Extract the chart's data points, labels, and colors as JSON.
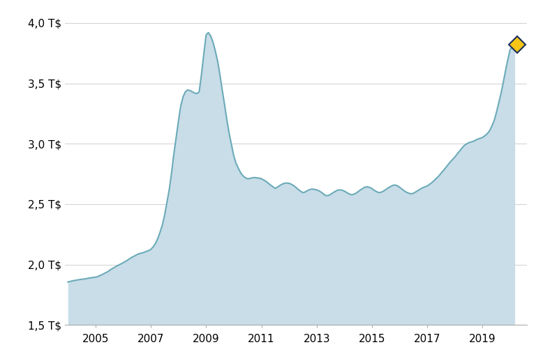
{
  "background_color": "#ffffff",
  "fill_color": "#c8dde8",
  "line_color": "#6baab8",
  "line_width": 1.5,
  "ylim": [
    1.5,
    4.1
  ],
  "yticks": [
    1.5,
    2.0,
    2.5,
    3.0,
    3.5,
    4.0
  ],
  "ytick_labels": [
    "1,5 T$",
    "2,0 T$",
    "2,5 T$",
    "3,0 T$",
    "3,5 T$",
    "4,0 T$"
  ],
  "xticks": [
    2005,
    2007,
    2009,
    2011,
    2013,
    2015,
    2017,
    2019
  ],
  "diamond_marker_color_face": "#f5c518",
  "diamond_marker_color_edge": "#1a2e5a",
  "diamond_x": 2020.25,
  "diamond_y": 3.82,
  "xlim_left": 2003.9,
  "xlim_right": 2020.6,
  "time_series": [
    [
      2004.0,
      1.855
    ],
    [
      2004.08,
      1.86
    ],
    [
      2004.17,
      1.865
    ],
    [
      2004.25,
      1.868
    ],
    [
      2004.33,
      1.872
    ],
    [
      2004.42,
      1.875
    ],
    [
      2004.5,
      1.878
    ],
    [
      2004.58,
      1.88
    ],
    [
      2004.67,
      1.883
    ],
    [
      2004.75,
      1.887
    ],
    [
      2004.83,
      1.89
    ],
    [
      2004.92,
      1.893
    ],
    [
      2005.0,
      1.895
    ],
    [
      2005.08,
      1.9
    ],
    [
      2005.17,
      1.91
    ],
    [
      2005.25,
      1.918
    ],
    [
      2005.33,
      1.928
    ],
    [
      2005.42,
      1.938
    ],
    [
      2005.5,
      1.95
    ],
    [
      2005.58,
      1.963
    ],
    [
      2005.67,
      1.975
    ],
    [
      2005.75,
      1.985
    ],
    [
      2005.83,
      1.995
    ],
    [
      2005.92,
      2.005
    ],
    [
      2006.0,
      2.015
    ],
    [
      2006.08,
      2.025
    ],
    [
      2006.17,
      2.038
    ],
    [
      2006.25,
      2.05
    ],
    [
      2006.33,
      2.062
    ],
    [
      2006.42,
      2.072
    ],
    [
      2006.5,
      2.082
    ],
    [
      2006.58,
      2.09
    ],
    [
      2006.67,
      2.095
    ],
    [
      2006.75,
      2.1
    ],
    [
      2006.83,
      2.108
    ],
    [
      2006.92,
      2.115
    ],
    [
      2007.0,
      2.125
    ],
    [
      2007.08,
      2.145
    ],
    [
      2007.17,
      2.175
    ],
    [
      2007.25,
      2.215
    ],
    [
      2007.33,
      2.265
    ],
    [
      2007.42,
      2.33
    ],
    [
      2007.5,
      2.41
    ],
    [
      2007.58,
      2.51
    ],
    [
      2007.67,
      2.625
    ],
    [
      2007.75,
      2.76
    ],
    [
      2007.83,
      2.91
    ],
    [
      2007.92,
      3.06
    ],
    [
      2008.0,
      3.19
    ],
    [
      2008.08,
      3.31
    ],
    [
      2008.17,
      3.39
    ],
    [
      2008.25,
      3.43
    ],
    [
      2008.33,
      3.445
    ],
    [
      2008.42,
      3.44
    ],
    [
      2008.5,
      3.43
    ],
    [
      2008.58,
      3.42
    ],
    [
      2008.67,
      3.415
    ],
    [
      2008.75,
      3.43
    ],
    [
      2008.83,
      3.57
    ],
    [
      2008.92,
      3.75
    ],
    [
      2009.0,
      3.9
    ],
    [
      2009.08,
      3.92
    ],
    [
      2009.17,
      3.89
    ],
    [
      2009.25,
      3.84
    ],
    [
      2009.33,
      3.77
    ],
    [
      2009.42,
      3.68
    ],
    [
      2009.5,
      3.57
    ],
    [
      2009.58,
      3.45
    ],
    [
      2009.67,
      3.32
    ],
    [
      2009.75,
      3.2
    ],
    [
      2009.83,
      3.09
    ],
    [
      2009.92,
      2.99
    ],
    [
      2010.0,
      2.9
    ],
    [
      2010.08,
      2.84
    ],
    [
      2010.17,
      2.795
    ],
    [
      2010.25,
      2.76
    ],
    [
      2010.33,
      2.735
    ],
    [
      2010.42,
      2.718
    ],
    [
      2010.5,
      2.71
    ],
    [
      2010.58,
      2.712
    ],
    [
      2010.67,
      2.718
    ],
    [
      2010.75,
      2.72
    ],
    [
      2010.83,
      2.718
    ],
    [
      2010.92,
      2.715
    ],
    [
      2011.0,
      2.71
    ],
    [
      2011.08,
      2.7
    ],
    [
      2011.17,
      2.688
    ],
    [
      2011.25,
      2.673
    ],
    [
      2011.33,
      2.658
    ],
    [
      2011.42,
      2.643
    ],
    [
      2011.5,
      2.63
    ],
    [
      2011.58,
      2.64
    ],
    [
      2011.67,
      2.655
    ],
    [
      2011.75,
      2.665
    ],
    [
      2011.83,
      2.672
    ],
    [
      2011.92,
      2.675
    ],
    [
      2012.0,
      2.672
    ],
    [
      2012.08,
      2.665
    ],
    [
      2012.17,
      2.653
    ],
    [
      2012.25,
      2.638
    ],
    [
      2012.33,
      2.622
    ],
    [
      2012.42,
      2.607
    ],
    [
      2012.5,
      2.595
    ],
    [
      2012.58,
      2.6
    ],
    [
      2012.67,
      2.612
    ],
    [
      2012.75,
      2.62
    ],
    [
      2012.83,
      2.625
    ],
    [
      2012.92,
      2.622
    ],
    [
      2013.0,
      2.618
    ],
    [
      2013.08,
      2.61
    ],
    [
      2013.17,
      2.598
    ],
    [
      2013.25,
      2.583
    ],
    [
      2013.33,
      2.57
    ],
    [
      2013.42,
      2.572
    ],
    [
      2013.5,
      2.58
    ],
    [
      2013.58,
      2.593
    ],
    [
      2013.67,
      2.605
    ],
    [
      2013.75,
      2.615
    ],
    [
      2013.83,
      2.618
    ],
    [
      2013.92,
      2.615
    ],
    [
      2014.0,
      2.608
    ],
    [
      2014.08,
      2.597
    ],
    [
      2014.17,
      2.585
    ],
    [
      2014.25,
      2.578
    ],
    [
      2014.33,
      2.58
    ],
    [
      2014.42,
      2.59
    ],
    [
      2014.5,
      2.603
    ],
    [
      2014.58,
      2.617
    ],
    [
      2014.67,
      2.63
    ],
    [
      2014.75,
      2.64
    ],
    [
      2014.83,
      2.643
    ],
    [
      2014.92,
      2.638
    ],
    [
      2015.0,
      2.628
    ],
    [
      2015.08,
      2.615
    ],
    [
      2015.17,
      2.603
    ],
    [
      2015.25,
      2.595
    ],
    [
      2015.33,
      2.598
    ],
    [
      2015.42,
      2.608
    ],
    [
      2015.5,
      2.62
    ],
    [
      2015.58,
      2.633
    ],
    [
      2015.67,
      2.645
    ],
    [
      2015.75,
      2.655
    ],
    [
      2015.83,
      2.658
    ],
    [
      2015.92,
      2.652
    ],
    [
      2016.0,
      2.64
    ],
    [
      2016.08,
      2.625
    ],
    [
      2016.17,
      2.61
    ],
    [
      2016.25,
      2.598
    ],
    [
      2016.33,
      2.59
    ],
    [
      2016.42,
      2.585
    ],
    [
      2016.5,
      2.59
    ],
    [
      2016.58,
      2.6
    ],
    [
      2016.67,
      2.613
    ],
    [
      2016.75,
      2.625
    ],
    [
      2016.83,
      2.635
    ],
    [
      2016.92,
      2.643
    ],
    [
      2017.0,
      2.65
    ],
    [
      2017.08,
      2.663
    ],
    [
      2017.17,
      2.678
    ],
    [
      2017.25,
      2.695
    ],
    [
      2017.33,
      2.713
    ],
    [
      2017.42,
      2.733
    ],
    [
      2017.5,
      2.755
    ],
    [
      2017.58,
      2.778
    ],
    [
      2017.67,
      2.802
    ],
    [
      2017.75,
      2.825
    ],
    [
      2017.83,
      2.848
    ],
    [
      2017.92,
      2.87
    ],
    [
      2018.0,
      2.89
    ],
    [
      2018.08,
      2.913
    ],
    [
      2018.17,
      2.938
    ],
    [
      2018.25,
      2.962
    ],
    [
      2018.33,
      2.983
    ],
    [
      2018.42,
      2.998
    ],
    [
      2018.5,
      3.008
    ],
    [
      2018.58,
      3.013
    ],
    [
      2018.67,
      3.02
    ],
    [
      2018.75,
      3.03
    ],
    [
      2018.83,
      3.038
    ],
    [
      2018.92,
      3.045
    ],
    [
      2019.0,
      3.052
    ],
    [
      2019.08,
      3.065
    ],
    [
      2019.17,
      3.082
    ],
    [
      2019.25,
      3.105
    ],
    [
      2019.33,
      3.14
    ],
    [
      2019.42,
      3.19
    ],
    [
      2019.5,
      3.255
    ],
    [
      2019.58,
      3.33
    ],
    [
      2019.67,
      3.415
    ],
    [
      2019.75,
      3.505
    ],
    [
      2019.83,
      3.6
    ],
    [
      2019.92,
      3.7
    ],
    [
      2020.0,
      3.78
    ],
    [
      2020.17,
      3.82
    ]
  ]
}
